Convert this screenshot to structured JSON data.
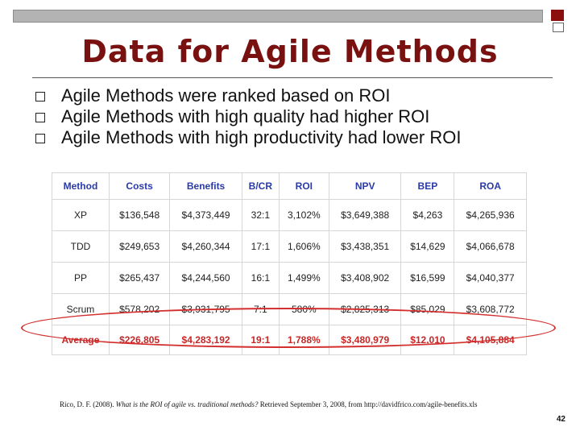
{
  "slide": {
    "title": "Data for Agile Methods",
    "page_number": "42"
  },
  "bullets": [
    "Agile Methods were ranked based on ROI",
    "Agile Methods with high quality had higher ROI",
    "Agile Methods with high productivity had lower ROI"
  ],
  "table": {
    "headers": [
      "Method",
      "Costs",
      "Benefits",
      "B/CR",
      "ROI",
      "NPV",
      "BEP",
      "ROA"
    ],
    "rows": [
      [
        "XP",
        "$136,548",
        "$4,373,449",
        "32:1",
        "3,102%",
        "$3,649,388",
        "$4,263",
        "$4,265,936"
      ],
      [
        "TDD",
        "$249,653",
        "$4,260,344",
        "17:1",
        "1,606%",
        "$3,438,351",
        "$14,629",
        "$4,066,678"
      ],
      [
        "PP",
        "$265,437",
        "$4,244,560",
        "16:1",
        "1,499%",
        "$3,408,902",
        "$16,599",
        "$4,040,377"
      ],
      [
        "Scrum",
        "$578,202",
        "$3,931,795",
        "7:1",
        "580%",
        "$2,825,313",
        "$85,029",
        "$3,608,772"
      ]
    ],
    "average": [
      "Average",
      "$226,805",
      "$4,283,192",
      "19:1",
      "1,788%",
      "$3,480,979",
      "$12,010",
      "$4,105,884"
    ]
  },
  "citation": {
    "prefix": "Rico, D. F. (2008). ",
    "italic": "What is the ROI of agile vs. traditional methods?",
    "suffix": " Retrieved September 3, 2008, from http://davidfrico.com/agile-benefits.xls"
  },
  "colors": {
    "title": "#7a1111",
    "header_text": "#2a3aa8",
    "average_text": "#c62828",
    "highlight_oval": "#d32f2f"
  }
}
